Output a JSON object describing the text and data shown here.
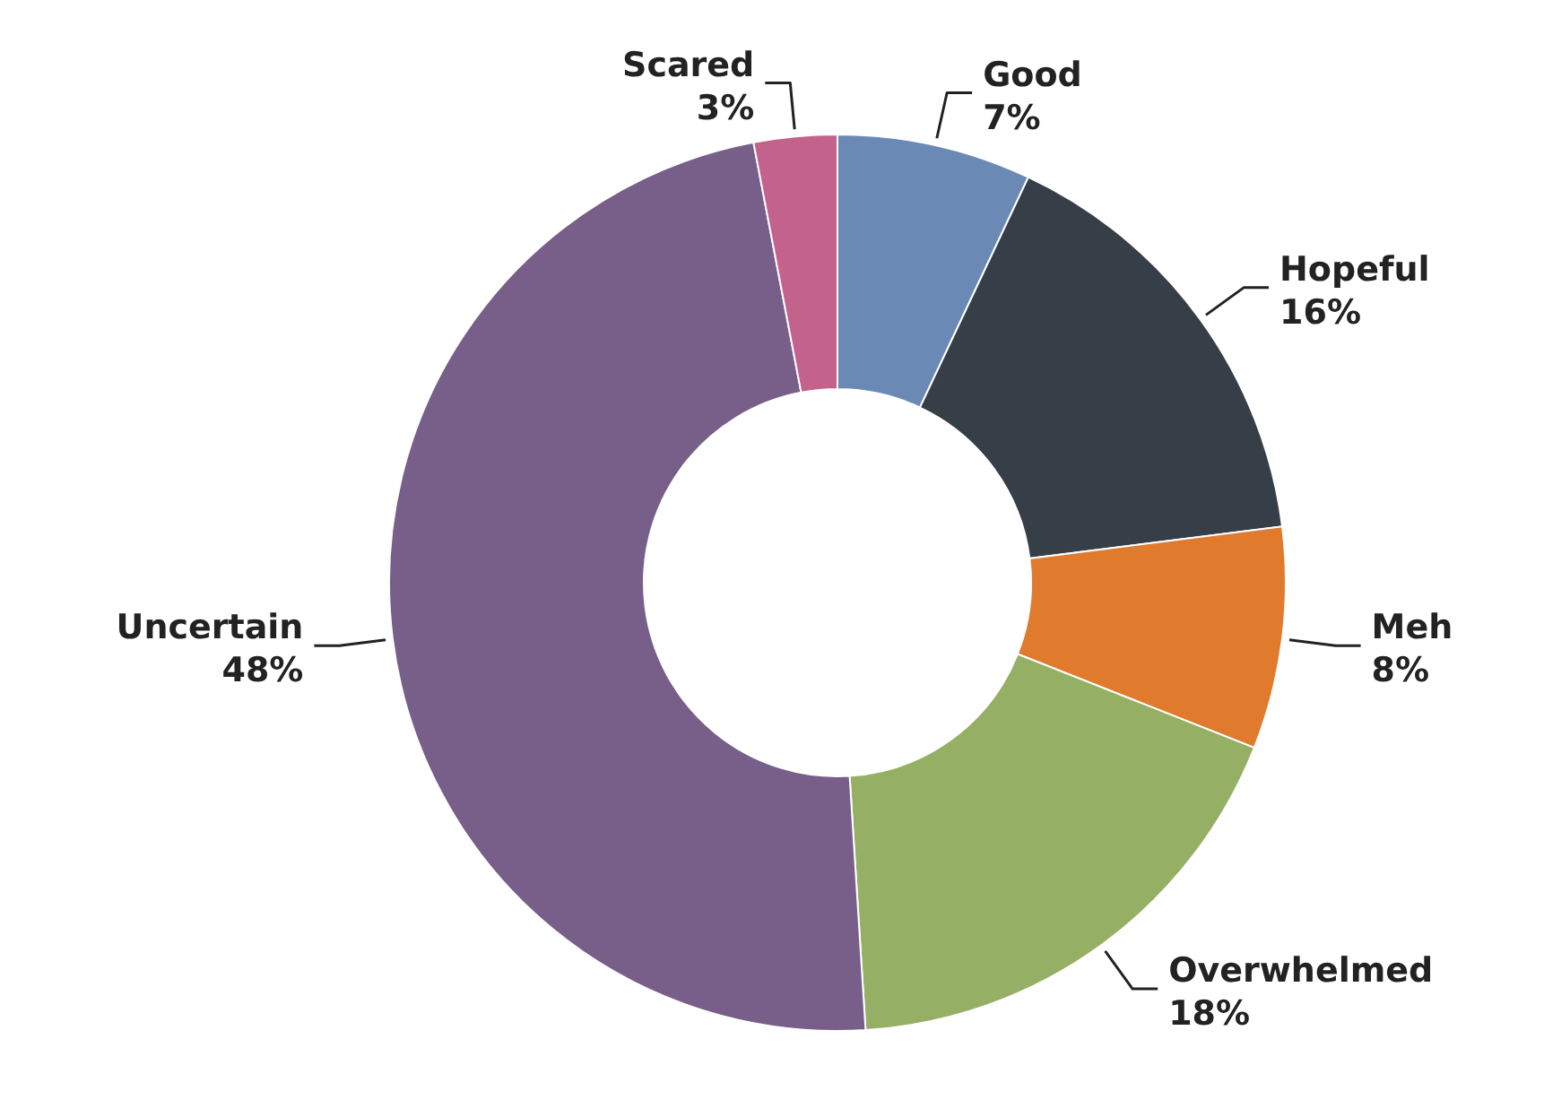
{
  "chart_data": {
    "type": "donut",
    "categories": [
      "Good",
      "Hopeful",
      "Meh",
      "Overwhelmed",
      "Uncertain",
      "Scared"
    ],
    "values": [
      7,
      16,
      8,
      18,
      48,
      3
    ],
    "colors": [
      "#6a8ab5",
      "#363e48",
      "#e07b2e",
      "#95b065",
      "#785f8a",
      "#c4628e"
    ],
    "value_labels": [
      "7%",
      "16%",
      "8%",
      "18%",
      "48%",
      "3%"
    ]
  }
}
